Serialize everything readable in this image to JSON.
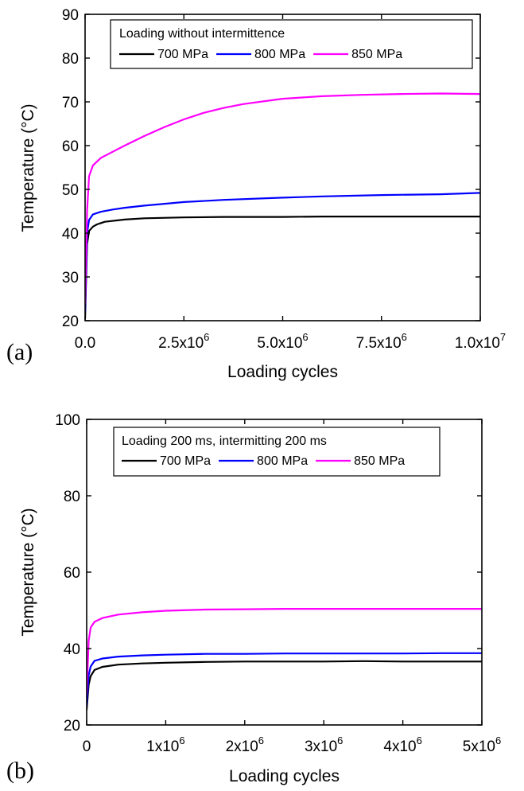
{
  "chart_data": [
    {
      "type": "line",
      "panel_label": "(a)",
      "xlabel": "Loading cycles",
      "ylabel": "Temperature (°C)",
      "xlim": [
        0,
        10000000
      ],
      "ylim": [
        20,
        90
      ],
      "xticks": [
        {
          "value": 0,
          "label": "0.0",
          "exp": ""
        },
        {
          "value": 2500000,
          "label": "2.5x10",
          "exp": "6"
        },
        {
          "value": 5000000,
          "label": "5.0x10",
          "exp": "6"
        },
        {
          "value": 7500000,
          "label": "7.5x10",
          "exp": "6"
        },
        {
          "value": 10000000,
          "label": "1.0x10",
          "exp": "7"
        }
      ],
      "yticks": [
        {
          "value": 20,
          "label": "20"
        },
        {
          "value": 30,
          "label": "30"
        },
        {
          "value": 40,
          "label": "40"
        },
        {
          "value": 50,
          "label": "50"
        },
        {
          "value": 60,
          "label": "60"
        },
        {
          "value": 70,
          "label": "70"
        },
        {
          "value": 80,
          "label": "80"
        },
        {
          "value": 90,
          "label": "90"
        }
      ],
      "grid": false,
      "legend_title": "Loading without intermittence",
      "legend_position": "top-left",
      "series": [
        {
          "name": "700 MPa",
          "color": "#000000",
          "x": [
            0,
            50000,
            100000,
            200000,
            300000,
            500000,
            1000000,
            1500000,
            2500000,
            3500000,
            5000000,
            6000000,
            7500000,
            9000000,
            10000000
          ],
          "y": [
            20.5,
            37.5,
            40.5,
            41.5,
            42.0,
            42.6,
            43.1,
            43.4,
            43.6,
            43.7,
            43.7,
            43.8,
            43.8,
            43.8,
            43.8
          ]
        },
        {
          "name": "800 MPa",
          "color": "#0000ff",
          "x": [
            0,
            50000,
            100000,
            200000,
            400000,
            700000,
            1000000,
            1500000,
            2500000,
            3500000,
            5000000,
            6000000,
            7500000,
            9000000,
            10000000
          ],
          "y": [
            22.0,
            40.0,
            43.0,
            44.3,
            44.9,
            45.4,
            45.8,
            46.3,
            47.1,
            47.6,
            48.1,
            48.4,
            48.7,
            48.9,
            49.2
          ]
        },
        {
          "name": "850 MPa",
          "color": "#ff00ff",
          "x": [
            0,
            50000,
            100000,
            200000,
            400000,
            700000,
            1000000,
            1500000,
            2000000,
            2500000,
            3000000,
            3500000,
            4000000,
            5000000,
            6000000,
            7000000,
            8000000,
            9000000,
            10000000
          ],
          "y": [
            24.0,
            45.0,
            53.0,
            55.5,
            57.2,
            58.6,
            60.0,
            62.2,
            64.2,
            66.0,
            67.5,
            68.6,
            69.5,
            70.7,
            71.3,
            71.6,
            71.8,
            71.9,
            71.8
          ]
        }
      ]
    },
    {
      "type": "line",
      "panel_label": "(b)",
      "xlabel": "Loading cycles",
      "ylabel": "Temperature (°C)",
      "xlim": [
        0,
        5000000
      ],
      "ylim": [
        20,
        100
      ],
      "xticks": [
        {
          "value": 0,
          "label": "0",
          "exp": ""
        },
        {
          "value": 1000000,
          "label": "1x10",
          "exp": "6"
        },
        {
          "value": 2000000,
          "label": "2x10",
          "exp": "6"
        },
        {
          "value": 3000000,
          "label": "3x10",
          "exp": "6"
        },
        {
          "value": 4000000,
          "label": "4x10",
          "exp": "6"
        },
        {
          "value": 5000000,
          "label": "5x10",
          "exp": "6"
        }
      ],
      "yticks": [
        {
          "value": 20,
          "label": "20"
        },
        {
          "value": 40,
          "label": "40"
        },
        {
          "value": 60,
          "label": "60"
        },
        {
          "value": 80,
          "label": "80"
        },
        {
          "value": 100,
          "label": "100"
        }
      ],
      "grid": false,
      "legend_title": "Loading 200 ms, intermitting 200 ms",
      "legend_position": "top-left",
      "series": [
        {
          "name": "700 MPa",
          "color": "#000000",
          "x": [
            0,
            25000,
            50000,
            100000,
            200000,
            400000,
            700000,
            1000000,
            1500000,
            2000000,
            2500000,
            3000000,
            3500000,
            4000000,
            4500000,
            5000000
          ],
          "y": [
            24.0,
            30.5,
            32.8,
            34.4,
            35.2,
            35.8,
            36.1,
            36.3,
            36.5,
            36.6,
            36.6,
            36.6,
            36.7,
            36.6,
            36.6,
            36.6
          ]
        },
        {
          "name": "800 MPa",
          "color": "#0000ff",
          "x": [
            0,
            25000,
            50000,
            100000,
            200000,
            400000,
            700000,
            1000000,
            1500000,
            2000000,
            2500000,
            3000000,
            3500000,
            4000000,
            4500000,
            5000000
          ],
          "y": [
            25.0,
            33.0,
            35.3,
            36.8,
            37.4,
            37.9,
            38.2,
            38.4,
            38.6,
            38.6,
            38.7,
            38.7,
            38.7,
            38.7,
            38.8,
            38.8
          ]
        },
        {
          "name": "850 MPa",
          "color": "#ff00ff",
          "x": [
            0,
            25000,
            50000,
            100000,
            200000,
            400000,
            700000,
            1000000,
            1500000,
            2000000,
            2500000,
            3000000,
            3500000,
            4000000,
            4500000,
            5000000
          ],
          "y": [
            28.0,
            42.0,
            45.5,
            47.0,
            48.0,
            48.9,
            49.5,
            49.9,
            50.2,
            50.3,
            50.4,
            50.4,
            50.4,
            50.4,
            50.4,
            50.4
          ]
        }
      ]
    }
  ]
}
